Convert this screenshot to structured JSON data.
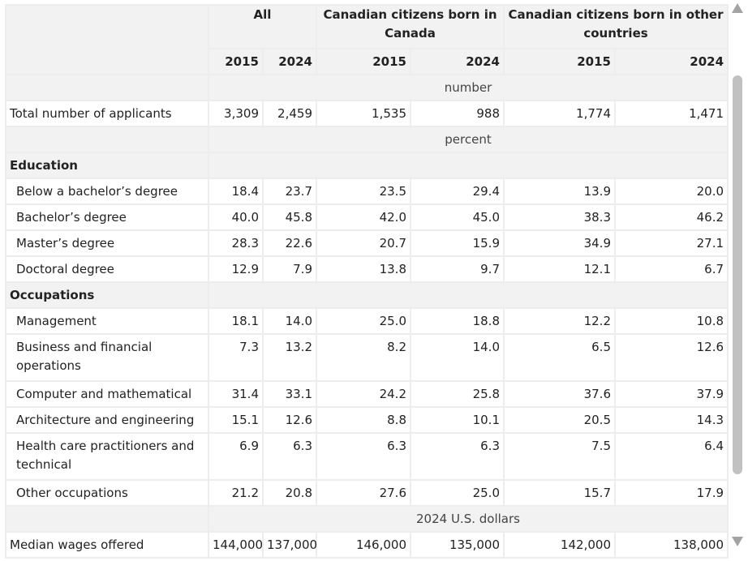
{
  "header": {
    "groups": [
      "All",
      "Canadian citizens born in Canada",
      "Canadian citizens born in other countries"
    ],
    "years": [
      "2015",
      "2024",
      "2015",
      "2024",
      "2015",
      "2024"
    ]
  },
  "units": {
    "number": "number",
    "percent": "percent",
    "dollars": "2024 U.S. dollars"
  },
  "rows": {
    "total": {
      "label": "Total number of applicants",
      "values": [
        "3,309",
        "2,459",
        "1,535",
        "988",
        "1,774",
        "1,471"
      ]
    },
    "education_title": "Education",
    "education": [
      {
        "label": "Below a bachelor’s degree",
        "values": [
          "18.4",
          "23.7",
          "23.5",
          "29.4",
          "13.9",
          "20.0"
        ]
      },
      {
        "label": "Bachelor’s degree",
        "values": [
          "40.0",
          "45.8",
          "42.0",
          "45.0",
          "38.3",
          "46.2"
        ]
      },
      {
        "label": "Master’s degree",
        "values": [
          "28.3",
          "22.6",
          "20.7",
          "15.9",
          "34.9",
          "27.1"
        ]
      },
      {
        "label": "Doctoral degree",
        "values": [
          "12.9",
          "7.9",
          "13.8",
          "9.7",
          "12.1",
          "6.7"
        ]
      }
    ],
    "occupations_title": "Occupations",
    "occupations": [
      {
        "label": "Management",
        "values": [
          "18.1",
          "14.0",
          "25.0",
          "18.8",
          "12.2",
          "10.8"
        ]
      },
      {
        "label": "Business and financial operations",
        "values": [
          "7.3",
          "13.2",
          "8.2",
          "14.0",
          "6.5",
          "12.6"
        ]
      },
      {
        "label": "Computer and mathematical",
        "values": [
          "31.4",
          "33.1",
          "24.2",
          "25.8",
          "37.6",
          "37.9"
        ]
      },
      {
        "label": "Architecture and engineering",
        "values": [
          "15.1",
          "12.6",
          "8.8",
          "10.1",
          "20.5",
          "14.3"
        ]
      },
      {
        "label": "Health care practitioners and technical",
        "values": [
          "6.9",
          "6.3",
          "6.3",
          "6.3",
          "7.5",
          "6.4"
        ]
      },
      {
        "label": "Other occupations",
        "values": [
          "21.2",
          "20.8",
          "27.6",
          "25.0",
          "15.7",
          "17.9"
        ]
      }
    ],
    "wages": {
      "label": "Median wages offered",
      "values": [
        "144,000",
        "137,000",
        "146,000",
        "135,000",
        "142,000",
        "138,000"
      ]
    }
  },
  "scrollbar": {
    "up_icon": "triangle-up-icon",
    "down_icon": "triangle-down-icon"
  }
}
